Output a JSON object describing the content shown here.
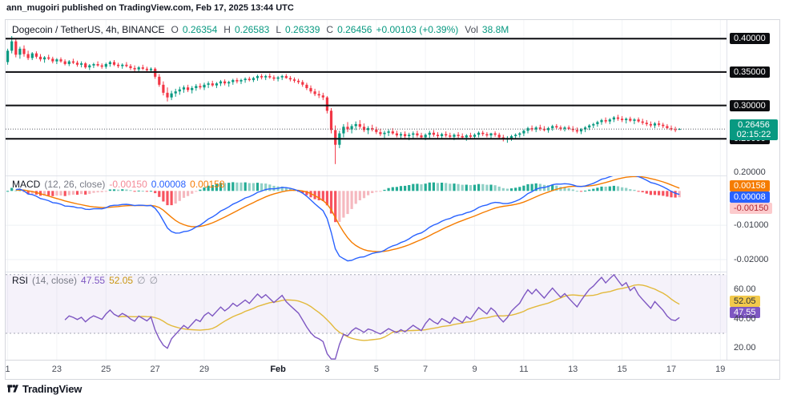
{
  "attribution": "ann_mugoiri published on TradingView.com, Feb 17, 2025 13:44 UTC",
  "footer": {
    "brand": "TradingView"
  },
  "colors": {
    "up": "#089981",
    "down": "#f23645",
    "macd_line": "#2962ff",
    "signal_line": "#f57c00",
    "hist_pos": "#22ab94",
    "hist_pos_light": "#8fd0c6",
    "hist_neg": "#f7525f",
    "hist_neg_light": "#f5b8bf",
    "rsi_line": "#7e57c2",
    "rsi_ma": "#e2b93b",
    "hline": "#0c0d10",
    "band_fill": "rgba(126,87,194,0.08)"
  },
  "price_legend": {
    "symbol": "Dogecoin / TetherUS, 4h, BINANCE",
    "o_label": "O",
    "o": "0.26354",
    "h_label": "H",
    "h": "0.26583",
    "l_label": "L",
    "l": "0.26339",
    "c_label": "C",
    "c": "0.26456",
    "change": "+0.00103 (+0.39%)",
    "vol_label": "Vol",
    "vol": "38.8M"
  },
  "macd_legend": {
    "title": "MACD",
    "params": "(12, 26, close)",
    "hist": "-0.00150",
    "macd": "0.00008",
    "signal": "0.00158"
  },
  "rsi_legend": {
    "title": "RSI",
    "params": "(14, close)",
    "rsi": "47.55",
    "ma": "52.05",
    "empty1": "∅",
    "empty2": "∅"
  },
  "axis": {
    "price_badges": [
      {
        "text": "0.40000",
        "value": 0.4
      },
      {
        "text": "0.35000",
        "value": 0.35
      },
      {
        "text": "0.30000",
        "value": 0.3
      },
      {
        "text": "0.25000",
        "value": 0.25
      }
    ],
    "price_plain": [
      {
        "text": "0.20000",
        "value": 0.2
      }
    ],
    "last_badge": {
      "price": "0.26456",
      "countdown": "02:15:22",
      "value": 0.26456
    },
    "macd_badges": [
      {
        "text": "0.00158",
        "value": 0.00158,
        "bg": "#f57c00",
        "fg": "#ffffff"
      },
      {
        "text": "0.00008",
        "value": 8e-05,
        "bg": "#2962ff",
        "fg": "#ffffff"
      },
      {
        "text": "-0.00150",
        "value": -0.0015,
        "bg": "#fccbcd",
        "fg": "#b22833"
      }
    ],
    "macd_plain": [
      {
        "text": "-0.01000",
        "value": -0.01
      },
      {
        "text": "-0.02000",
        "value": -0.02
      }
    ],
    "rsi_badges": [
      {
        "text": "52.05",
        "value": 52.05,
        "bg": "#f2c94c",
        "fg": "#2a2e39"
      },
      {
        "text": "47.55",
        "value": 47.55,
        "bg": "#7e57c2",
        "fg": "#ffffff"
      }
    ],
    "rsi_plain": [
      {
        "text": "60.00",
        "value": 60
      },
      {
        "text": "40.00",
        "value": 40
      },
      {
        "text": "20.00",
        "value": 20
      }
    ]
  },
  "chart_data": {
    "type": "candlestick",
    "title": "Dogecoin / TetherUS, 4h, BINANCE",
    "x_slots": 176,
    "time_labels": [
      {
        "text": "1",
        "slot": 0
      },
      {
        "text": "23",
        "slot": 12
      },
      {
        "text": "25",
        "slot": 24
      },
      {
        "text": "27",
        "slot": 36
      },
      {
        "text": "29",
        "slot": 48
      },
      {
        "text": "Feb",
        "slot": 66,
        "major": true
      },
      {
        "text": "3",
        "slot": 78
      },
      {
        "text": "5",
        "slot": 90
      },
      {
        "text": "7",
        "slot": 102
      },
      {
        "text": "9",
        "slot": 114
      },
      {
        "text": "11",
        "slot": 126
      },
      {
        "text": "13",
        "slot": 138
      },
      {
        "text": "15",
        "slot": 150
      },
      {
        "text": "17",
        "slot": 162
      },
      {
        "text": "19",
        "slot": 174
      }
    ],
    "price_panel": {
      "y_range": [
        0.195,
        0.428
      ],
      "hlines": [
        0.4,
        0.35,
        0.3,
        0.25
      ],
      "last_price": 0.26456,
      "ohlc": [
        [
          0.365,
          0.385,
          0.361,
          0.382
        ],
        [
          0.382,
          0.404,
          0.378,
          0.396
        ],
        [
          0.396,
          0.4,
          0.372,
          0.376
        ],
        [
          0.376,
          0.388,
          0.37,
          0.385
        ],
        [
          0.385,
          0.39,
          0.373,
          0.377
        ],
        [
          0.377,
          0.382,
          0.368,
          0.371
        ],
        [
          0.371,
          0.38,
          0.368,
          0.378
        ],
        [
          0.378,
          0.381,
          0.37,
          0.373
        ],
        [
          0.373,
          0.377,
          0.366,
          0.369
        ],
        [
          0.369,
          0.374,
          0.364,
          0.372
        ],
        [
          0.372,
          0.376,
          0.368,
          0.37
        ],
        [
          0.37,
          0.373,
          0.363,
          0.366
        ],
        [
          0.366,
          0.371,
          0.362,
          0.369
        ],
        [
          0.369,
          0.372,
          0.364,
          0.366
        ],
        [
          0.366,
          0.369,
          0.36,
          0.362
        ],
        [
          0.362,
          0.368,
          0.359,
          0.366
        ],
        [
          0.366,
          0.37,
          0.362,
          0.364
        ],
        [
          0.364,
          0.367,
          0.358,
          0.361
        ],
        [
          0.361,
          0.366,
          0.357,
          0.363
        ],
        [
          0.363,
          0.365,
          0.355,
          0.357
        ],
        [
          0.357,
          0.362,
          0.353,
          0.36
        ],
        [
          0.36,
          0.364,
          0.356,
          0.362
        ],
        [
          0.362,
          0.366,
          0.358,
          0.36
        ],
        [
          0.36,
          0.363,
          0.355,
          0.358
        ],
        [
          0.358,
          0.364,
          0.355,
          0.362
        ],
        [
          0.362,
          0.367,
          0.358,
          0.365
        ],
        [
          0.365,
          0.368,
          0.359,
          0.361
        ],
        [
          0.361,
          0.364,
          0.356,
          0.359
        ],
        [
          0.359,
          0.363,
          0.355,
          0.361
        ],
        [
          0.361,
          0.365,
          0.357,
          0.359
        ],
        [
          0.359,
          0.362,
          0.353,
          0.356
        ],
        [
          0.356,
          0.36,
          0.351,
          0.354
        ],
        [
          0.354,
          0.359,
          0.35,
          0.357
        ],
        [
          0.357,
          0.361,
          0.353,
          0.355
        ],
        [
          0.355,
          0.358,
          0.35,
          0.353
        ],
        [
          0.353,
          0.357,
          0.349,
          0.355
        ],
        [
          0.355,
          0.357,
          0.34,
          0.343
        ],
        [
          0.343,
          0.347,
          0.328,
          0.331
        ],
        [
          0.331,
          0.336,
          0.315,
          0.319
        ],
        [
          0.319,
          0.327,
          0.306,
          0.312
        ],
        [
          0.312,
          0.322,
          0.308,
          0.318
        ],
        [
          0.318,
          0.325,
          0.313,
          0.321
        ],
        [
          0.321,
          0.328,
          0.316,
          0.324
        ],
        [
          0.324,
          0.33,
          0.319,
          0.327
        ],
        [
          0.327,
          0.331,
          0.32,
          0.323
        ],
        [
          0.323,
          0.329,
          0.318,
          0.326
        ],
        [
          0.326,
          0.332,
          0.322,
          0.329
        ],
        [
          0.329,
          0.333,
          0.324,
          0.327
        ],
        [
          0.327,
          0.334,
          0.323,
          0.331
        ],
        [
          0.331,
          0.336,
          0.326,
          0.333
        ],
        [
          0.333,
          0.337,
          0.328,
          0.33
        ],
        [
          0.33,
          0.335,
          0.326,
          0.333
        ],
        [
          0.333,
          0.338,
          0.329,
          0.336
        ],
        [
          0.336,
          0.339,
          0.33,
          0.333
        ],
        [
          0.333,
          0.337,
          0.328,
          0.335
        ],
        [
          0.335,
          0.34,
          0.331,
          0.338
        ],
        [
          0.338,
          0.341,
          0.333,
          0.336
        ],
        [
          0.336,
          0.34,
          0.332,
          0.338
        ],
        [
          0.338,
          0.342,
          0.334,
          0.34
        ],
        [
          0.34,
          0.343,
          0.336,
          0.338
        ],
        [
          0.338,
          0.343,
          0.335,
          0.341
        ],
        [
          0.341,
          0.346,
          0.337,
          0.344
        ],
        [
          0.344,
          0.347,
          0.339,
          0.342
        ],
        [
          0.342,
          0.346,
          0.338,
          0.344
        ],
        [
          0.344,
          0.348,
          0.34,
          0.342
        ],
        [
          0.342,
          0.345,
          0.337,
          0.34
        ],
        [
          0.34,
          0.344,
          0.336,
          0.342
        ],
        [
          0.342,
          0.346,
          0.338,
          0.344
        ],
        [
          0.344,
          0.347,
          0.34,
          0.341
        ],
        [
          0.341,
          0.344,
          0.336,
          0.339
        ],
        [
          0.339,
          0.342,
          0.334,
          0.337
        ],
        [
          0.337,
          0.34,
          0.332,
          0.335
        ],
        [
          0.335,
          0.338,
          0.328,
          0.331
        ],
        [
          0.331,
          0.334,
          0.323,
          0.326
        ],
        [
          0.326,
          0.33,
          0.318,
          0.321
        ],
        [
          0.321,
          0.325,
          0.314,
          0.317
        ],
        [
          0.317,
          0.322,
          0.311,
          0.315
        ],
        [
          0.315,
          0.319,
          0.308,
          0.312
        ],
        [
          0.312,
          0.314,
          0.288,
          0.292
        ],
        [
          0.292,
          0.296,
          0.258,
          0.263
        ],
        [
          0.263,
          0.27,
          0.212,
          0.241
        ],
        [
          0.241,
          0.262,
          0.236,
          0.258
        ],
        [
          0.258,
          0.272,
          0.252,
          0.268
        ],
        [
          0.268,
          0.275,
          0.26,
          0.264
        ],
        [
          0.264,
          0.272,
          0.258,
          0.269
        ],
        [
          0.269,
          0.276,
          0.263,
          0.272
        ],
        [
          0.272,
          0.278,
          0.265,
          0.268
        ],
        [
          0.268,
          0.273,
          0.26,
          0.263
        ],
        [
          0.263,
          0.269,
          0.257,
          0.266
        ],
        [
          0.266,
          0.271,
          0.261,
          0.264
        ],
        [
          0.264,
          0.268,
          0.257,
          0.26
        ],
        [
          0.26,
          0.265,
          0.254,
          0.257
        ],
        [
          0.257,
          0.262,
          0.251,
          0.259
        ],
        [
          0.259,
          0.264,
          0.254,
          0.261
        ],
        [
          0.261,
          0.266,
          0.256,
          0.258
        ],
        [
          0.258,
          0.262,
          0.252,
          0.255
        ],
        [
          0.255,
          0.26,
          0.249,
          0.257
        ],
        [
          0.257,
          0.261,
          0.251,
          0.254
        ],
        [
          0.254,
          0.259,
          0.248,
          0.256
        ],
        [
          0.256,
          0.261,
          0.25,
          0.258
        ],
        [
          0.258,
          0.262,
          0.252,
          0.255
        ],
        [
          0.255,
          0.259,
          0.249,
          0.252
        ],
        [
          0.252,
          0.258,
          0.248,
          0.256
        ],
        [
          0.256,
          0.262,
          0.251,
          0.259
        ],
        [
          0.259,
          0.263,
          0.253,
          0.256
        ],
        [
          0.256,
          0.26,
          0.25,
          0.254
        ],
        [
          0.254,
          0.259,
          0.249,
          0.257
        ],
        [
          0.257,
          0.261,
          0.252,
          0.255
        ],
        [
          0.255,
          0.259,
          0.25,
          0.253
        ],
        [
          0.253,
          0.258,
          0.248,
          0.256
        ],
        [
          0.256,
          0.26,
          0.251,
          0.254
        ],
        [
          0.254,
          0.258,
          0.249,
          0.252
        ],
        [
          0.252,
          0.257,
          0.247,
          0.255
        ],
        [
          0.255,
          0.259,
          0.25,
          0.253
        ],
        [
          0.253,
          0.258,
          0.249,
          0.256
        ],
        [
          0.256,
          0.261,
          0.252,
          0.259
        ],
        [
          0.259,
          0.262,
          0.254,
          0.257
        ],
        [
          0.257,
          0.26,
          0.252,
          0.255
        ],
        [
          0.255,
          0.259,
          0.25,
          0.258
        ],
        [
          0.258,
          0.261,
          0.253,
          0.256
        ],
        [
          0.256,
          0.259,
          0.249,
          0.252
        ],
        [
          0.252,
          0.256,
          0.246,
          0.249
        ],
        [
          0.249,
          0.254,
          0.244,
          0.251
        ],
        [
          0.251,
          0.256,
          0.247,
          0.254
        ],
        [
          0.254,
          0.258,
          0.25,
          0.256
        ],
        [
          0.256,
          0.26,
          0.252,
          0.258
        ],
        [
          0.258,
          0.264,
          0.254,
          0.262
        ],
        [
          0.262,
          0.268,
          0.258,
          0.266
        ],
        [
          0.266,
          0.27,
          0.261,
          0.264
        ],
        [
          0.264,
          0.269,
          0.26,
          0.267
        ],
        [
          0.267,
          0.271,
          0.262,
          0.265
        ],
        [
          0.265,
          0.269,
          0.261,
          0.263
        ],
        [
          0.263,
          0.268,
          0.259,
          0.266
        ],
        [
          0.266,
          0.271,
          0.262,
          0.269
        ],
        [
          0.269,
          0.272,
          0.264,
          0.267
        ],
        [
          0.267,
          0.27,
          0.262,
          0.265
        ],
        [
          0.265,
          0.269,
          0.261,
          0.267
        ],
        [
          0.267,
          0.27,
          0.263,
          0.265
        ],
        [
          0.265,
          0.269,
          0.26,
          0.263
        ],
        [
          0.263,
          0.267,
          0.258,
          0.261
        ],
        [
          0.261,
          0.266,
          0.257,
          0.264
        ],
        [
          0.264,
          0.269,
          0.26,
          0.267
        ],
        [
          0.267,
          0.272,
          0.263,
          0.27
        ],
        [
          0.27,
          0.274,
          0.266,
          0.272
        ],
        [
          0.272,
          0.277,
          0.268,
          0.275
        ],
        [
          0.275,
          0.28,
          0.271,
          0.278
        ],
        [
          0.278,
          0.282,
          0.273,
          0.276
        ],
        [
          0.276,
          0.281,
          0.272,
          0.279
        ],
        [
          0.279,
          0.284,
          0.275,
          0.282
        ],
        [
          0.282,
          0.286,
          0.277,
          0.28
        ],
        [
          0.28,
          0.284,
          0.275,
          0.278
        ],
        [
          0.278,
          0.282,
          0.273,
          0.28
        ],
        [
          0.28,
          0.283,
          0.275,
          0.277
        ],
        [
          0.277,
          0.281,
          0.272,
          0.279
        ],
        [
          0.279,
          0.282,
          0.274,
          0.276
        ],
        [
          0.276,
          0.28,
          0.271,
          0.274
        ],
        [
          0.274,
          0.278,
          0.269,
          0.272
        ],
        [
          0.272,
          0.276,
          0.267,
          0.27
        ],
        [
          0.27,
          0.275,
          0.266,
          0.273
        ],
        [
          0.273,
          0.277,
          0.268,
          0.271
        ],
        [
          0.271,
          0.274,
          0.266,
          0.269
        ],
        [
          0.269,
          0.272,
          0.264,
          0.266
        ],
        [
          0.266,
          0.27,
          0.262,
          0.264
        ],
        [
          0.264,
          0.268,
          0.26,
          0.26354
        ],
        [
          0.26354,
          0.26583,
          0.26339,
          0.26456
        ]
      ]
    },
    "macd": {
      "fast": 12,
      "slow": 26,
      "signal": 9,
      "y_range": [
        -0.0235,
        0.0045
      ],
      "last": {
        "hist": -0.0015,
        "macd": 8e-05,
        "signal": 0.00158
      }
    },
    "rsi": {
      "length": 14,
      "ma_length": 14,
      "bands": [
        70,
        30
      ],
      "y_range": [
        12,
        72
      ],
      "last": {
        "rsi": 47.55,
        "ma": 52.05
      }
    }
  }
}
